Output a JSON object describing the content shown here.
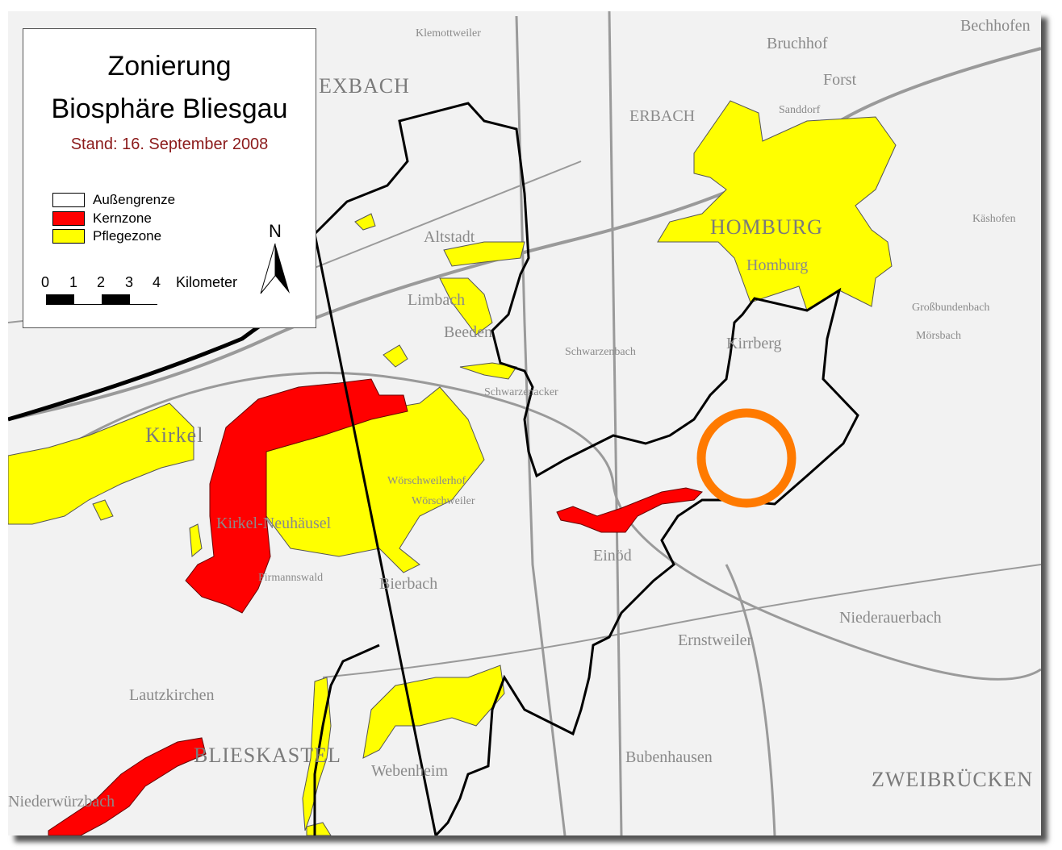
{
  "legend": {
    "title_line1": "Zonierung",
    "title_line2": "Biosphäre Bliesgau",
    "date": "Stand: 16. September 2008",
    "items": [
      {
        "label": "Außengrenze",
        "color": "#ffffff"
      },
      {
        "label": "Kernzone",
        "color": "#ff0000"
      },
      {
        "label": "Pflegezone",
        "color": "#ffff00"
      }
    ],
    "scale": {
      "ticks": [
        "0",
        "1",
        "2",
        "3",
        "4"
      ],
      "unit": "Kilometer"
    },
    "north_label": "N"
  },
  "colors": {
    "kernzone": "#ff0000",
    "pflegezone": "#ffff00",
    "boundary": "#000000",
    "highlight_circle": "#ff7a00"
  },
  "places": [
    {
      "name": "Klemottweiler"
    },
    {
      "name": "Bruchhof"
    },
    {
      "name": "Bechhofen"
    },
    {
      "name": "EXBACH"
    },
    {
      "name": "ERBACH"
    },
    {
      "name": "Sanddorf"
    },
    {
      "name": "Forst"
    },
    {
      "name": "HOMBURG"
    },
    {
      "name": "Homburg"
    },
    {
      "name": "Käshofen"
    },
    {
      "name": "Altstadt"
    },
    {
      "name": "Limbach"
    },
    {
      "name": "Beeden"
    },
    {
      "name": "Großbundenbach"
    },
    {
      "name": "Mörsbach"
    },
    {
      "name": "Kirkel"
    },
    {
      "name": "Schwarzenacker"
    },
    {
      "name": "Wörschweiler"
    },
    {
      "name": "Kirrberg"
    },
    {
      "name": "Einöd"
    },
    {
      "name": "Bierbach"
    },
    {
      "name": "Kirkel-Neuhäusel"
    },
    {
      "name": "Lautzkirchen"
    },
    {
      "name": "BLIESKASTEL"
    },
    {
      "name": "Webenheim"
    },
    {
      "name": "Niederwürzbach"
    },
    {
      "name": "Niederauerbach"
    },
    {
      "name": "Ernstweiler"
    },
    {
      "name": "Bubenhausen"
    },
    {
      "name": "ZWEIBRÜCKEN"
    },
    {
      "name": "Pirmannswald"
    },
    {
      "name": "Wörschweilerhof"
    },
    {
      "name": "Schwarzenbach"
    }
  ]
}
